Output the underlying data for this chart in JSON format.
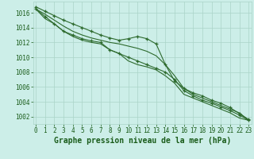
{
  "background_color": "#cceee8",
  "grid_color": "#aad4c8",
  "line_color": "#2d6a2d",
  "xlabel": "Graphe pression niveau de la mer (hPa)",
  "xlabel_fontsize": 7,
  "xlim": [
    -0.3,
    23.3
  ],
  "ylim": [
    1001.0,
    1017.5
  ],
  "yticks": [
    1002,
    1004,
    1006,
    1008,
    1010,
    1012,
    1014,
    1016
  ],
  "xticks": [
    0,
    1,
    2,
    3,
    4,
    5,
    6,
    7,
    8,
    9,
    10,
    11,
    12,
    13,
    14,
    15,
    16,
    17,
    18,
    19,
    20,
    21,
    22,
    23
  ],
  "series": [
    [
      1016.8,
      1016.2,
      1015.6,
      1015.0,
      1014.5,
      1014.0,
      1013.5,
      1013.0,
      1012.6,
      1012.3,
      1012.5,
      1012.8,
      1012.5,
      1011.8,
      1009.0,
      1006.8,
      1005.8,
      1005.2,
      1004.8,
      1004.2,
      1003.8,
      1003.2,
      1002.4,
      1001.6
    ],
    [
      1016.5,
      1015.8,
      1015.0,
      1014.2,
      1013.5,
      1013.0,
      1012.6,
      1012.3,
      1012.0,
      1011.8,
      1011.5,
      1011.2,
      1010.8,
      1010.2,
      1009.0,
      1007.5,
      1005.8,
      1005.0,
      1004.5,
      1004.0,
      1003.5,
      1003.0,
      1002.5,
      1001.5
    ],
    [
      1016.5,
      1015.5,
      1014.5,
      1013.5,
      1013.0,
      1012.5,
      1012.2,
      1012.0,
      1011.0,
      1010.5,
      1010.0,
      1009.5,
      1009.0,
      1008.5,
      1008.0,
      1007.0,
      1005.5,
      1004.8,
      1004.2,
      1003.8,
      1003.3,
      1002.8,
      1002.2,
      1001.5
    ],
    [
      1016.5,
      1015.2,
      1014.5,
      1013.5,
      1012.8,
      1012.3,
      1012.0,
      1011.8,
      1011.0,
      1010.5,
      1009.5,
      1009.0,
      1008.7,
      1008.3,
      1007.5,
      1006.5,
      1005.0,
      1004.5,
      1004.0,
      1003.5,
      1003.0,
      1002.5,
      1001.8,
      1001.5
    ]
  ],
  "marker_series": [
    0,
    2
  ],
  "tick_fontsize": 5.5,
  "tick_label_color": "#1a5c1a",
  "xlabel_bold": true,
  "xlabel_color": "#1a5c1a"
}
